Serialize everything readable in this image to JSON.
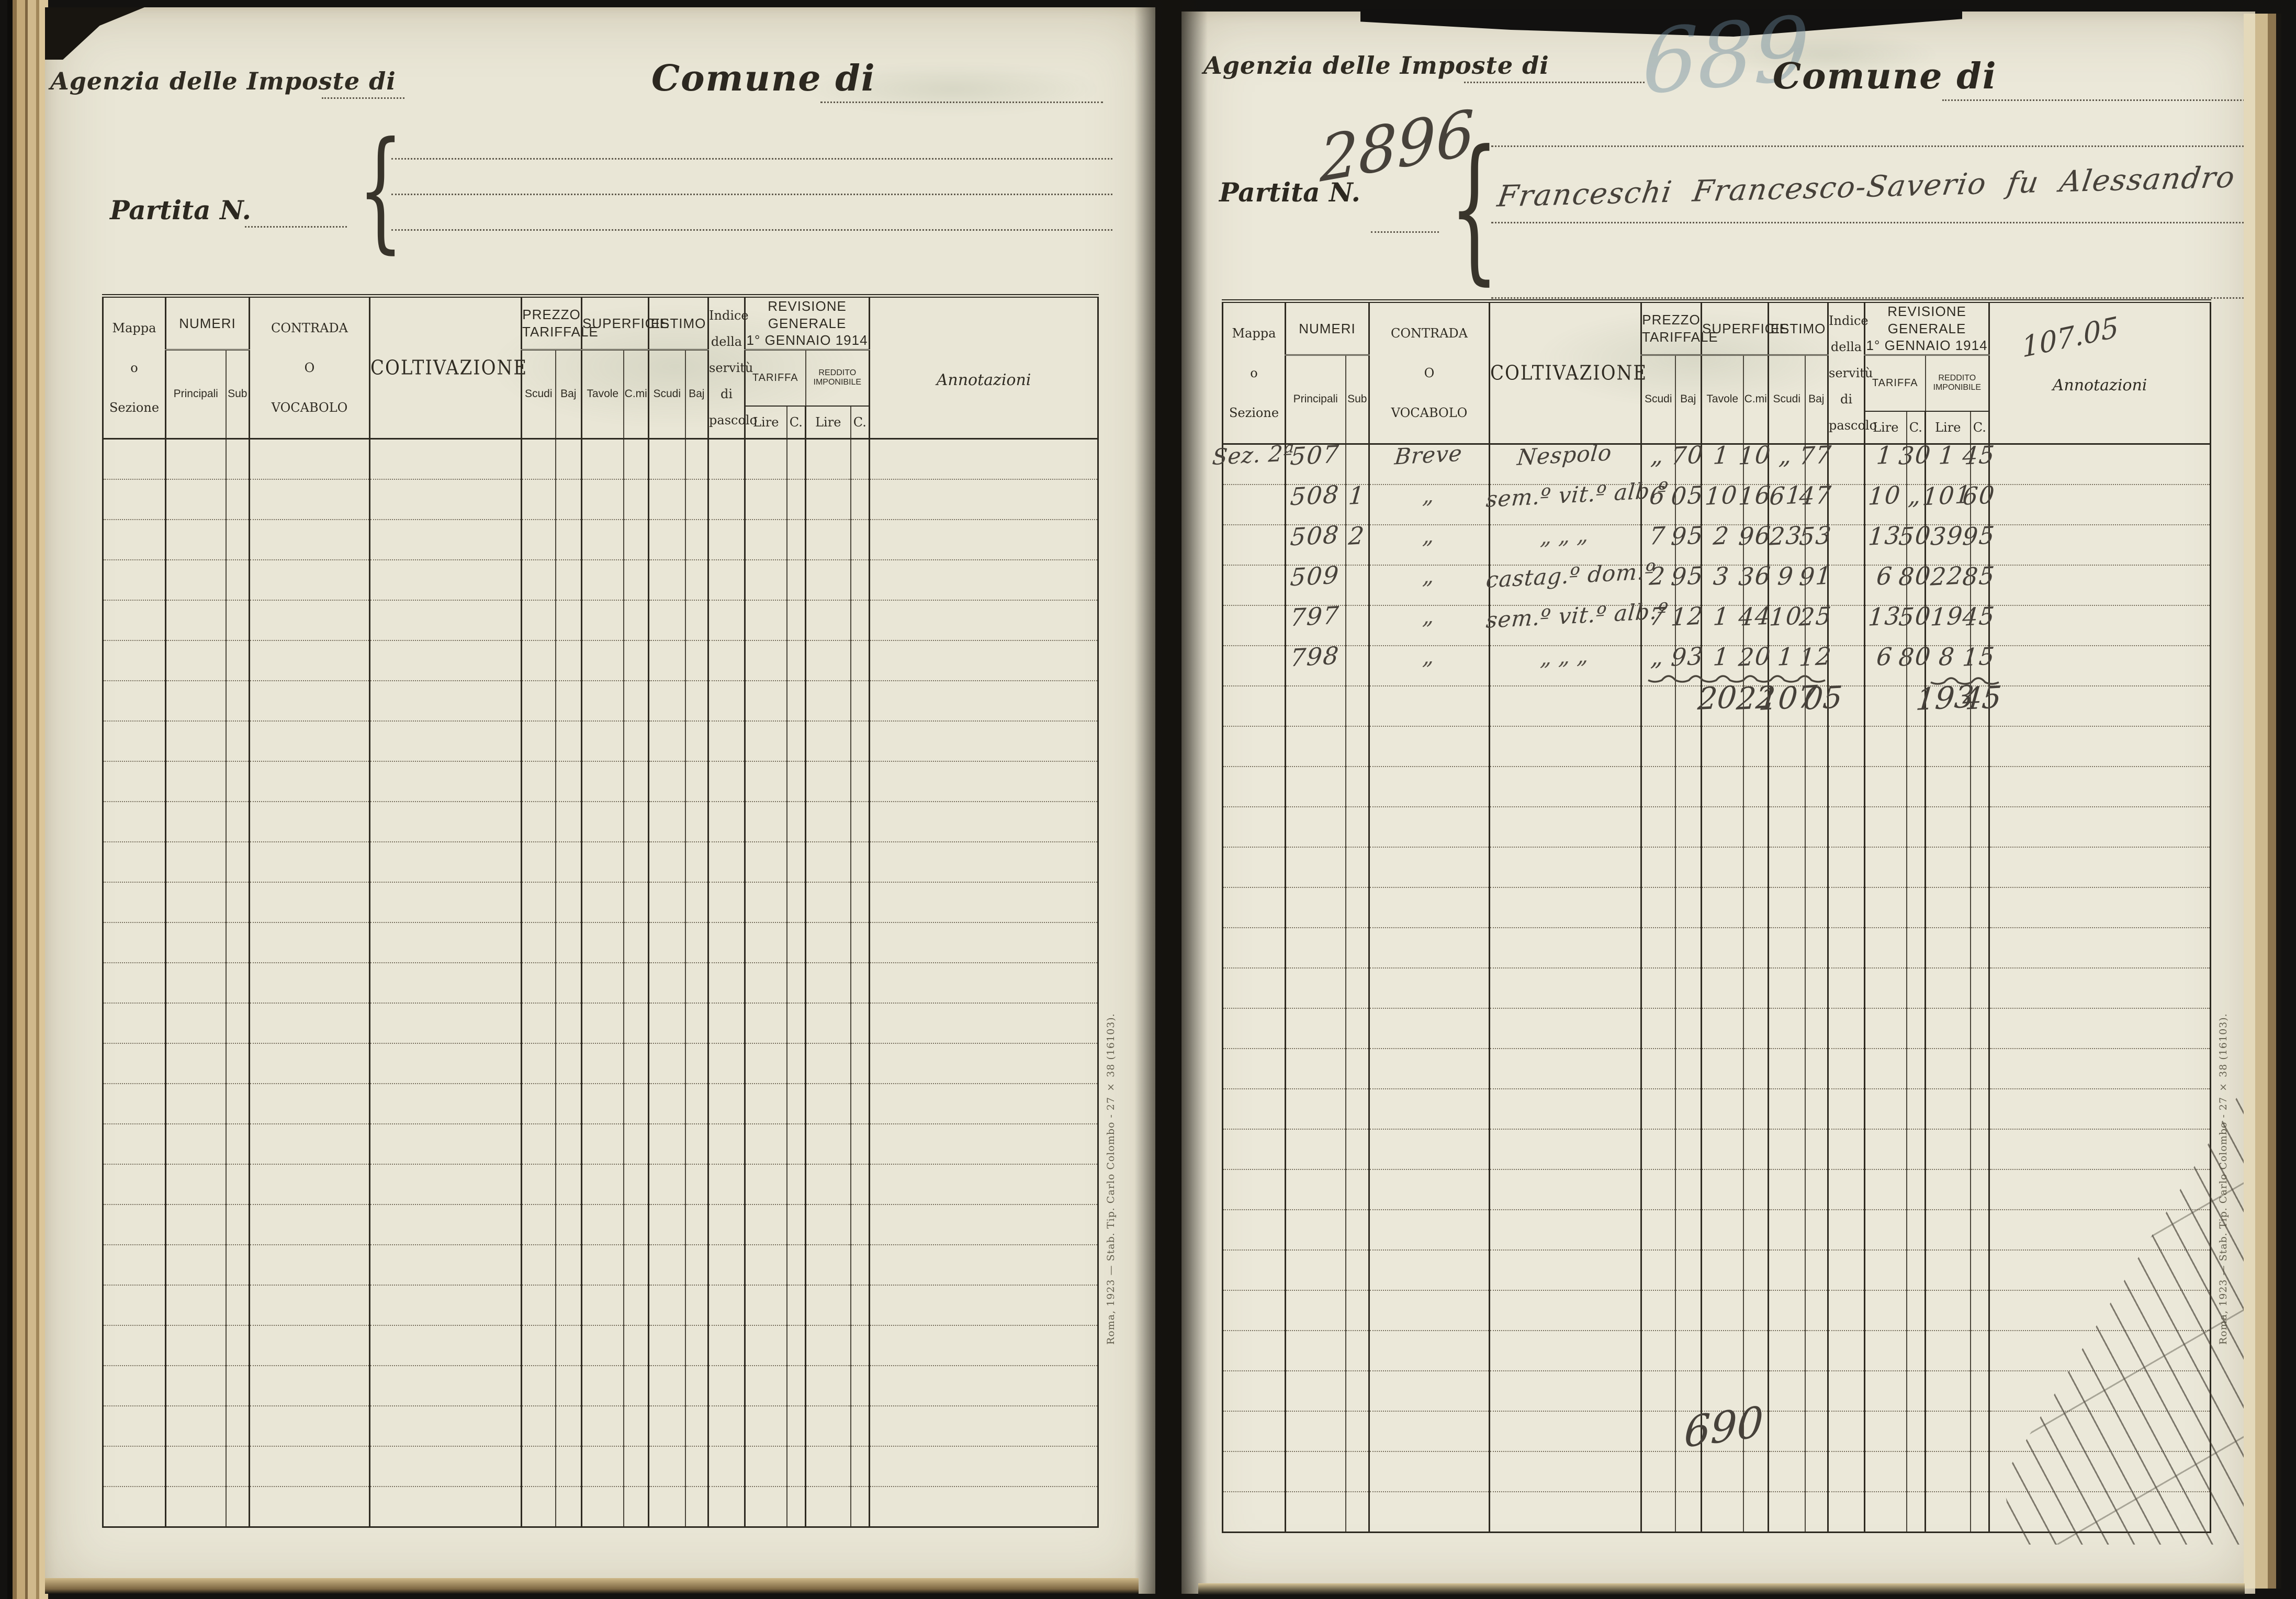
{
  "shared": {
    "agency_label": "Agenzia delle Imposte di",
    "comune_label": "Comune di",
    "partita_label": "Partita N.",
    "printer_imprint": "Roma, 1923 — Stab. Tip. Carlo Colombo - 27 × 38 (16103)."
  },
  "table_headers": {
    "mappa_lines": [
      "Mappa",
      "o",
      "Sezione"
    ],
    "numeri": "NUMERI",
    "principali": "Principali",
    "sub": "Sub",
    "contrada_lines": [
      "CONTRADA",
      "O",
      "VOCABOLO"
    ],
    "coltivazione": "COLTIVAZIONE",
    "prezzo_tariffale": "PREZZO TARIFFALE",
    "superficie": "SUPERFICIE",
    "estimo": "ESTIMO",
    "scudi": "Scudi",
    "baj": "Baj",
    "tavole": "Tavole",
    "cmi": "C.mi",
    "indice_lines": [
      "Indice",
      "della",
      "servitù",
      "di",
      "pascolo"
    ],
    "revisione_line1": "REVISIONE GENERALE",
    "revisione_line2": "1° GENNAIO 1914",
    "tariffa": "TARIFFA",
    "reddito_imponibile": "REDDITO IMPONIBILE",
    "lire": "Lire",
    "c_abbr": "C.",
    "annotazioni": "Annotazioni"
  },
  "page_left": {
    "rows": []
  },
  "page_right": {
    "pencil_page_number": "689",
    "partita_number": "2896",
    "holder_name": "Franceschi Francesco-Saverio fu Alessandro",
    "annotation_value": "107.05",
    "footer_number": "690",
    "rows": [
      {
        "mappa": "Sez. 2ª",
        "principale": "507",
        "sub": "",
        "contrada": "Breve",
        "coltivazione": "Nespolo",
        "prezzo_scudi": "„",
        "prezzo_baj": "70",
        "superficie_tavole": "1",
        "superficie_cmi": "10",
        "estimo_scudi": "„",
        "estimo_baj": "77",
        "indice_pascolo": "",
        "tariffa_lire": "1",
        "tariffa_c": "30",
        "reddito_lire": "1",
        "reddito_c": "45"
      },
      {
        "mappa": "",
        "principale": "508",
        "sub": "1",
        "contrada": "„",
        "coltivazione": "sem.º vit.º alb.º",
        "prezzo_scudi": "6",
        "prezzo_baj": "05",
        "superficie_tavole": "10",
        "superficie_cmi": "16",
        "estimo_scudi": "61",
        "estimo_baj": "47",
        "indice_pascolo": "",
        "tariffa_lire": "10",
        "tariffa_c": "„",
        "reddito_lire": "101",
        "reddito_c": "60"
      },
      {
        "mappa": "",
        "principale": "508",
        "sub": "2",
        "contrada": "„",
        "coltivazione": "„   „   „",
        "prezzo_scudi": "7",
        "prezzo_baj": "95",
        "superficie_tavole": "2",
        "superficie_cmi": "96",
        "estimo_scudi": "23",
        "estimo_baj": "53",
        "indice_pascolo": "",
        "tariffa_lire": "13",
        "tariffa_c": "50",
        "reddito_lire": "39",
        "reddito_c": "95"
      },
      {
        "mappa": "",
        "principale": "509",
        "sub": "",
        "contrada": "„",
        "coltivazione": "castag.º dom.º",
        "prezzo_scudi": "2",
        "prezzo_baj": "95",
        "superficie_tavole": "3",
        "superficie_cmi": "36",
        "estimo_scudi": "9",
        "estimo_baj": "91",
        "indice_pascolo": "",
        "tariffa_lire": "6",
        "tariffa_c": "80",
        "reddito_lire": "22",
        "reddito_c": "85"
      },
      {
        "mappa": "",
        "principale": "797",
        "sub": "",
        "contrada": "„",
        "coltivazione": "sem.º vit.º alb.º",
        "prezzo_scudi": "7",
        "prezzo_baj": "12",
        "superficie_tavole": "1",
        "superficie_cmi": "44",
        "estimo_scudi": "10",
        "estimo_baj": "25",
        "indice_pascolo": "",
        "tariffa_lire": "13",
        "tariffa_c": "50",
        "reddito_lire": "19",
        "reddito_c": "45"
      },
      {
        "mappa": "",
        "principale": "798",
        "sub": "",
        "contrada": "„",
        "coltivazione": "„   „   „",
        "prezzo_scudi": "„",
        "prezzo_baj": "93",
        "superficie_tavole": "1",
        "superficie_cmi": "20",
        "estimo_scudi": "1",
        "estimo_baj": "12",
        "indice_pascolo": "",
        "tariffa_lire": "6",
        "tariffa_c": "80",
        "reddito_lire": "8",
        "reddito_c": "15"
      }
    ],
    "totals": {
      "superficie_tavole": "20",
      "superficie_cmi": "22",
      "estimo_scudi": "107",
      "estimo_baj": "05",
      "reddito_lire": "193",
      "reddito_c": "45"
    }
  },
  "colors": {
    "print_ink": "#2f2b22",
    "hand_ink": "#46413a",
    "pencil_blue": "#69879b",
    "paper": "#e9e6d6"
  }
}
